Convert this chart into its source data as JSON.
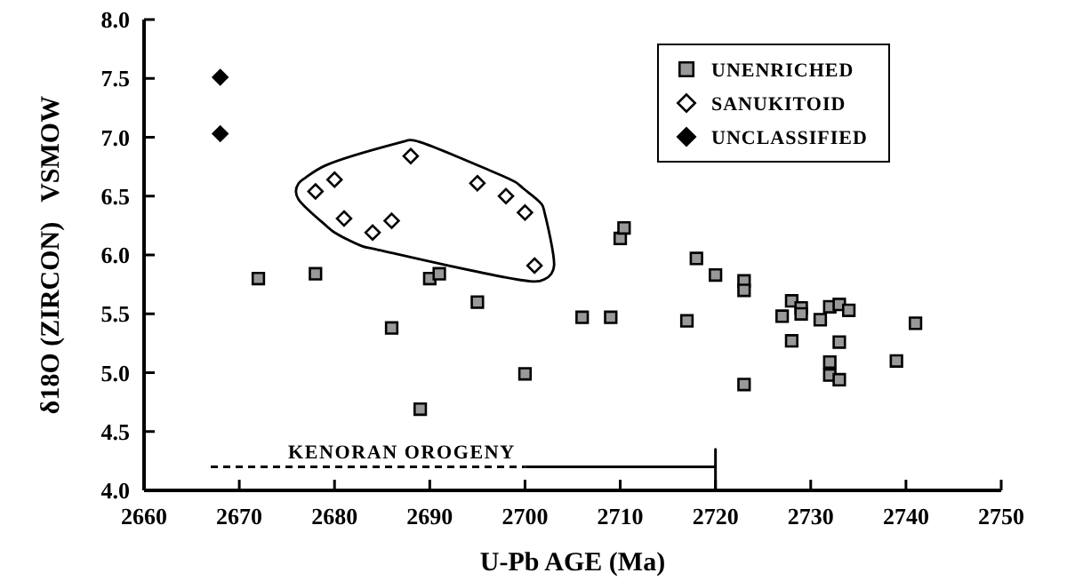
{
  "chart_data": {
    "type": "scatter",
    "xlabel": "U-Pb AGE (Ma)",
    "ylabel": "δ18O (ZIRCON)   VSMOW",
    "xlim": [
      2660,
      2750
    ],
    "xticks": [
      2660,
      2670,
      2680,
      2690,
      2700,
      2710,
      2720,
      2730,
      2740,
      2750
    ],
    "ylim": [
      4.0,
      8.0
    ],
    "yticks": [
      {
        "value": 4,
        "label": "4.0"
      },
      {
        "value": 4.5,
        "label": "4.5"
      },
      {
        "value": 5,
        "label": "5.0"
      },
      {
        "value": 5.5,
        "label": "5.5"
      },
      {
        "value": 6,
        "label": "6.0"
      },
      {
        "value": 6.5,
        "label": "6.5"
      },
      {
        "value": 7,
        "label": "7.0"
      },
      {
        "value": 7.5,
        "label": "7.5"
      },
      {
        "value": 8,
        "label": "8.0"
      }
    ],
    "grid": false,
    "legend": "top right",
    "series": [
      {
        "name": "UNENRICHED",
        "color": "#999999",
        "marker": "square",
        "x": [
          2672,
          2678,
          2686,
          2689,
          2690,
          2691,
          2695,
          2700,
          2706,
          2709,
          2710,
          2710.4,
          2718,
          2717,
          2720,
          2723,
          2723,
          2723,
          2728,
          2729,
          2729,
          2727,
          2728,
          2731,
          2732,
          2733,
          2734,
          2733,
          2732,
          2732,
          2733,
          2739,
          2741
        ],
        "values": [
          5.8,
          5.84,
          5.38,
          4.69,
          5.8,
          5.84,
          5.6,
          4.99,
          5.47,
          5.47,
          6.14,
          6.23,
          5.97,
          5.44,
          5.83,
          5.78,
          5.7,
          4.9,
          5.61,
          5.55,
          5.5,
          5.48,
          5.27,
          5.45,
          5.56,
          5.58,
          5.53,
          5.26,
          5.09,
          4.98,
          4.94,
          5.1,
          5.42
        ]
      },
      {
        "name": "SANUKITOID",
        "color": "#ffffff",
        "marker": "diamond",
        "x": [
          2678,
          2680,
          2681,
          2684,
          2686,
          2688,
          2695,
          2698,
          2700,
          2701
        ],
        "values": [
          6.54,
          6.64,
          6.31,
          6.19,
          6.29,
          6.84,
          6.61,
          6.5,
          6.36,
          5.91
        ]
      },
      {
        "name": "UNCLASSIFIED",
        "color": "#000000",
        "marker": "diamond",
        "x": [
          2668,
          2668
        ],
        "values": [
          7.51,
          7.03
        ]
      },
      {
        "type": "line",
        "color": "#000000",
        "line_style": "dashed",
        "marker": "none",
        "x": [
          2667,
          2700
        ],
        "values": [
          4.2,
          4.2
        ]
      },
      {
        "type": "line",
        "color": "#000000",
        "line_style": "solid",
        "marker": "none",
        "x": [
          2700,
          2720,
          2720,
          2720
        ],
        "values": [
          4.2,
          4.2,
          4.35,
          4.0
        ]
      }
    ],
    "annotations": [
      {
        "text": "KENORAN OROGENY",
        "x": 2699,
        "y": 4.2
      }
    ]
  }
}
